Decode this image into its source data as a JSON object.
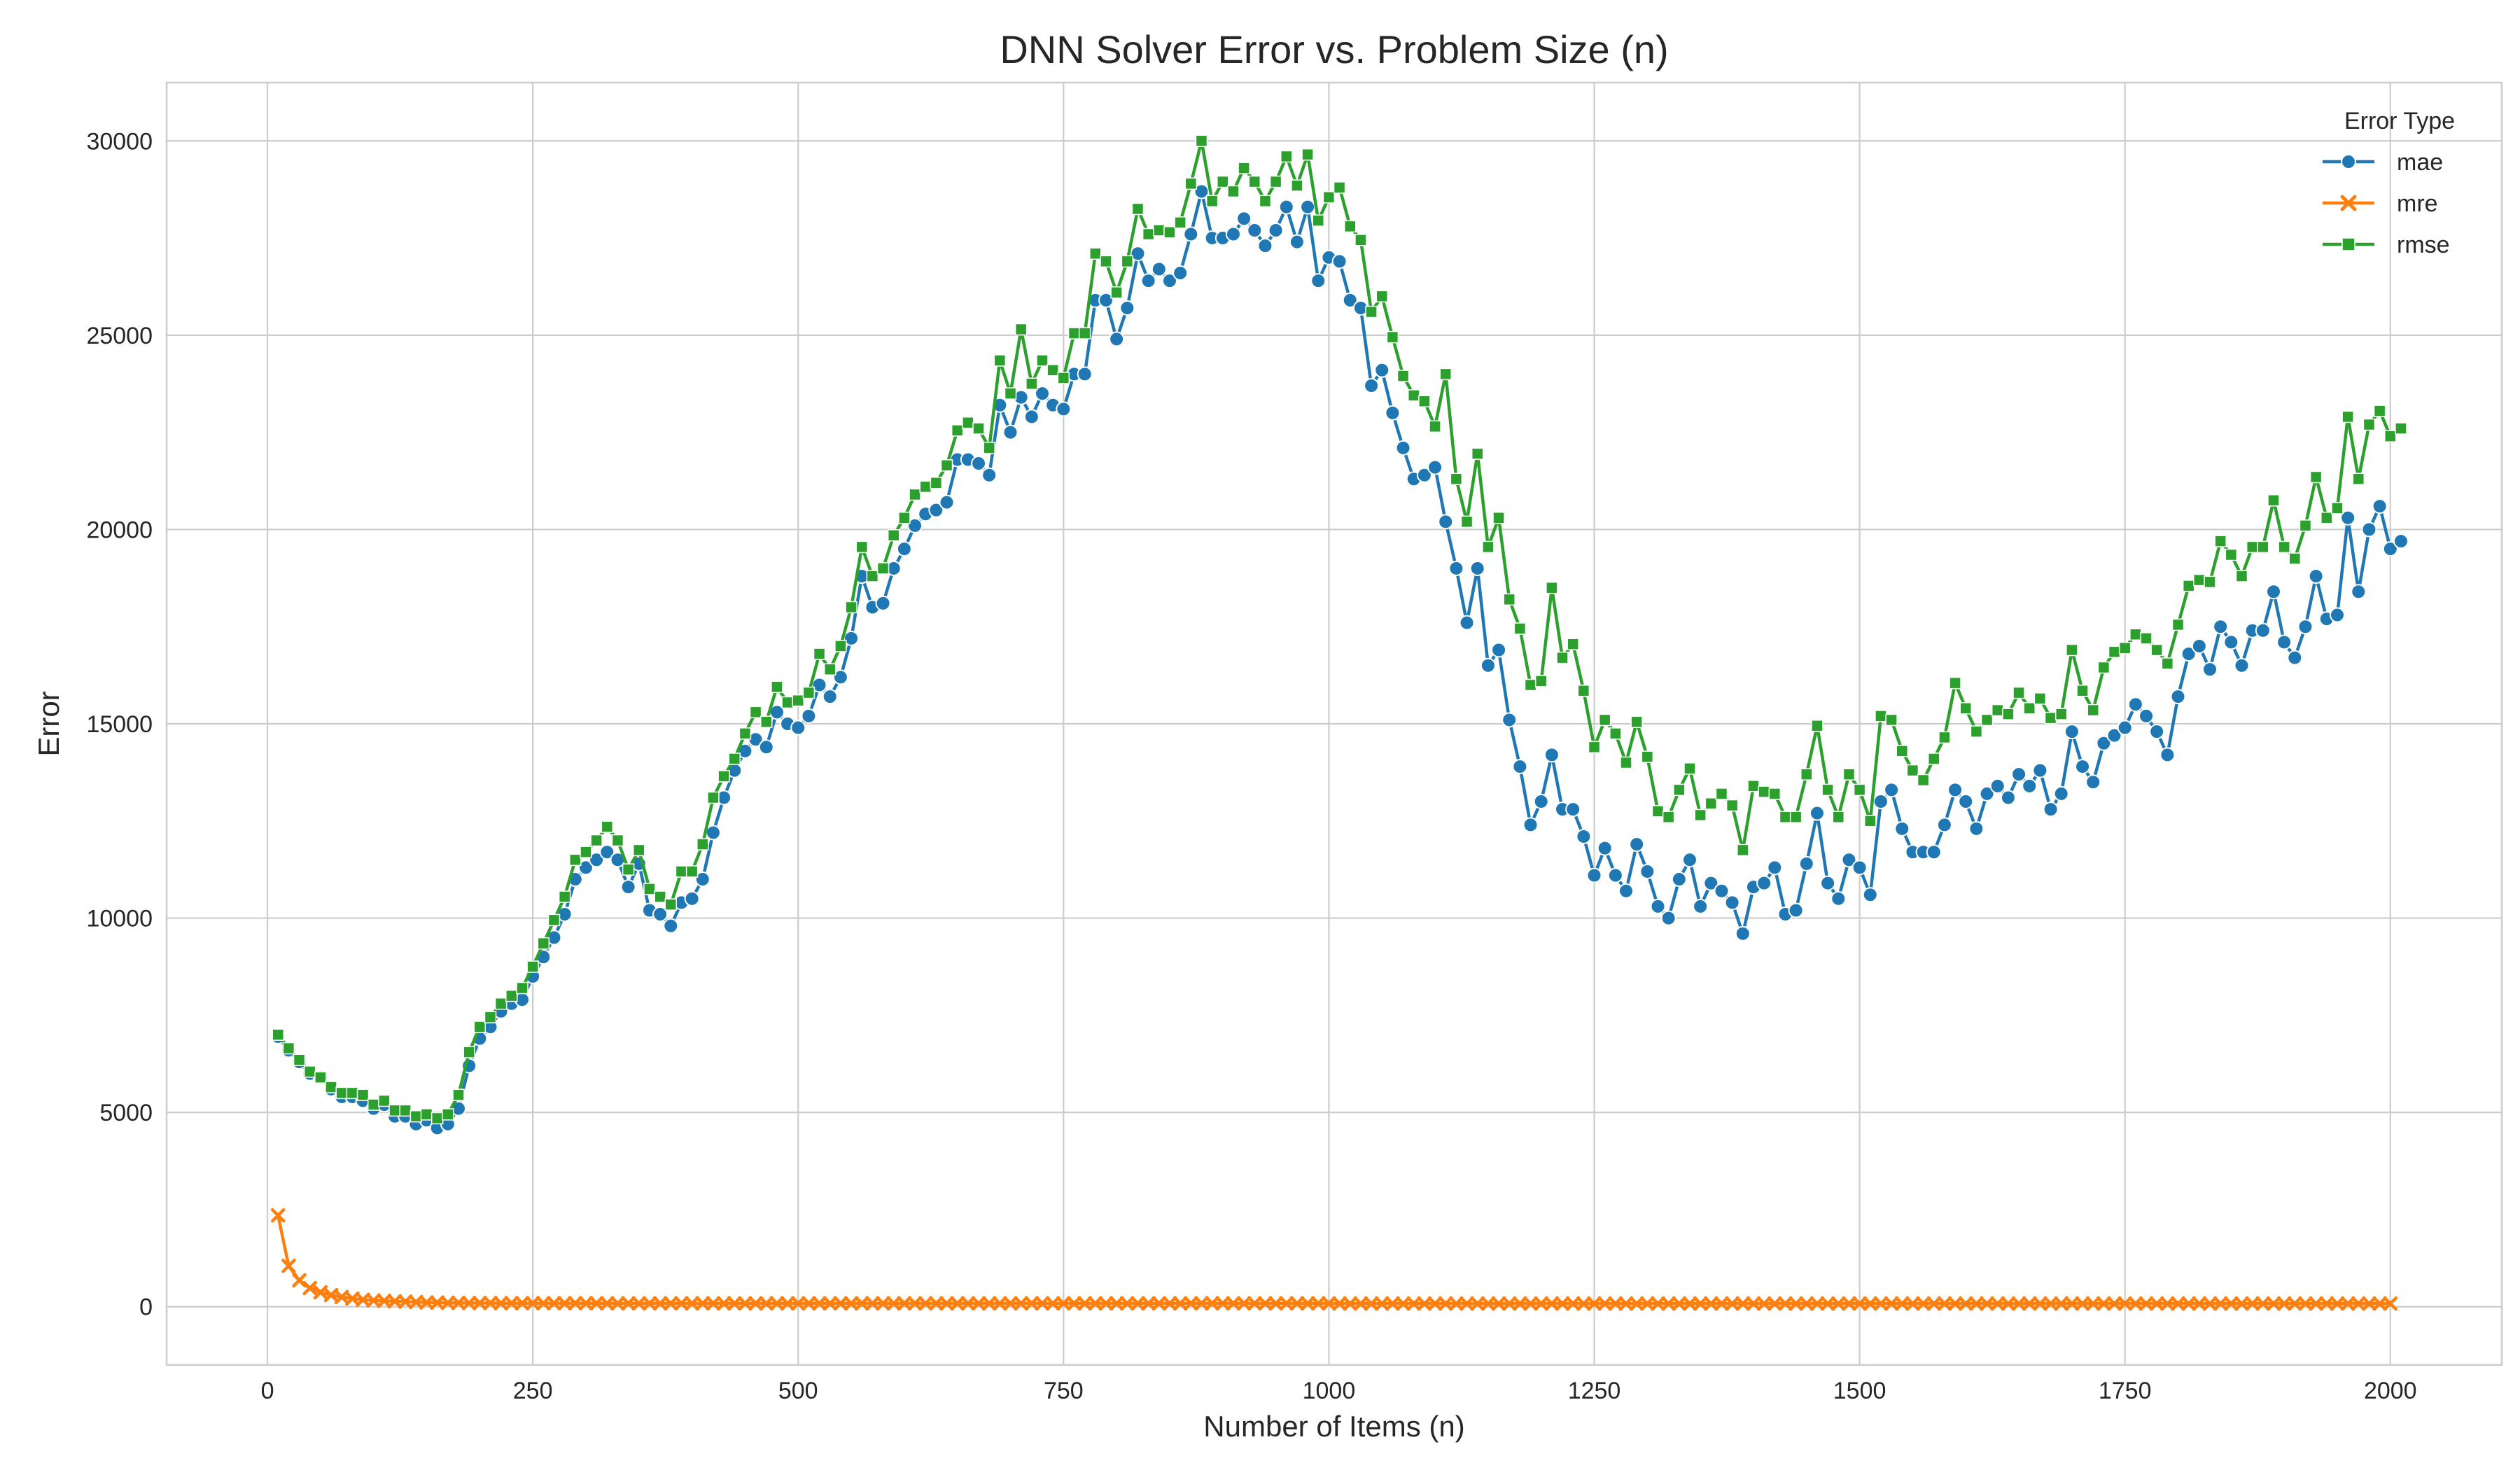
{
  "chart_data": {
    "type": "line",
    "title": "DNN Solver Error vs. Problem Size (n)",
    "xlabel": "Number of Items (n)",
    "ylabel": "Error",
    "xlim": [
      -95,
      2105
    ],
    "ylim": [
      -1500,
      31500
    ],
    "xticks": [
      0,
      250,
      500,
      750,
      1000,
      1250,
      1500,
      1750,
      2000
    ],
    "yticks": [
      0,
      5000,
      10000,
      15000,
      20000,
      25000,
      30000
    ],
    "xtick_labels": [
      "0",
      "250",
      "500",
      "750",
      "1000",
      "1250",
      "1500",
      "1750",
      "2000"
    ],
    "ytick_labels": [
      "0",
      "5000",
      "10000",
      "15000",
      "20000",
      "25000",
      "30000"
    ],
    "grid": true,
    "legend": {
      "title": "Error Type",
      "position": "top-right"
    },
    "x_start": 10,
    "x_step": 10,
    "series": [
      {
        "name": "mae",
        "color": "#1f77b4",
        "marker": "circle",
        "values": [
          6950,
          6600,
          6300,
          6000,
          5900,
          5600,
          5400,
          5400,
          5300,
          5100,
          5200,
          4900,
          4900,
          4700,
          4800,
          4600,
          4700,
          5100,
          6200,
          6900,
          7200,
          7600,
          7800,
          7900,
          8500,
          9000,
          9500,
          10100,
          11000,
          11300,
          11500,
          11700,
          11500,
          10800,
          11400,
          10200,
          10100,
          9800,
          10400,
          10500,
          11000,
          12200,
          13100,
          13800,
          14300,
          14600,
          14400,
          15300,
          15000,
          14900,
          15200,
          16000,
          15700,
          16200,
          17200,
          18800,
          18000,
          18100,
          19000,
          19500,
          20100,
          20400,
          20500,
          20700,
          21800,
          21800,
          21700,
          21400,
          23200,
          22500,
          23400,
          22900,
          23500,
          23200,
          23100,
          24000,
          24000,
          25900,
          25900,
          24900,
          25700,
          27100,
          26400,
          26700,
          26400,
          26600,
          27600,
          28700,
          27500,
          27500,
          27600,
          28000,
          27700,
          27300,
          27700,
          28300,
          27400,
          28300,
          26400,
          27000,
          26900,
          25900,
          25700,
          23700,
          24100,
          23000,
          22100,
          21300,
          21400,
          21600,
          20200,
          19000,
          17600,
          19000,
          16500,
          16900,
          15100,
          13900,
          12400,
          13000,
          14200,
          12800,
          12800,
          12100,
          11100,
          11800,
          11100,
          10700,
          11900,
          11200,
          10300,
          10000,
          11000,
          11500,
          10300,
          10900,
          10700,
          10400,
          9600,
          10800,
          10900,
          11300,
          10100,
          10200,
          11400,
          12700,
          10900,
          10500,
          11500,
          11300,
          10600,
          13000,
          13300,
          12300,
          11700,
          11700,
          11700,
          12400,
          13300,
          13000,
          12300,
          13200,
          13400,
          13100,
          13700,
          13400,
          13800,
          12800,
          13200,
          14800,
          13900,
          13500,
          14500,
          14700,
          14900,
          15500,
          15200,
          14800,
          14200,
          15700,
          16800,
          17000,
          16400,
          17500,
          17100,
          16500,
          17400,
          17400,
          18400,
          17100,
          16700,
          17500,
          18800,
          17700,
          17800,
          20300,
          18400,
          20000,
          20600,
          19500,
          19700
        ]
      },
      {
        "name": "mre",
        "color": "#ff7f0e",
        "marker": "x",
        "values": [
          2350,
          1050,
          680,
          480,
          370,
          300,
          250,
          210,
          180,
          160,
          150,
          140,
          130,
          120,
          110,
          105,
          100,
          100,
          95,
          95,
          95,
          90,
          90,
          90,
          90,
          90,
          90,
          90,
          90,
          90,
          90,
          85,
          85,
          85,
          85,
          85,
          85,
          85,
          85,
          85,
          85,
          85,
          85,
          85,
          85,
          85,
          85,
          85,
          85,
          85,
          85,
          85,
          85,
          85,
          85,
          85,
          85,
          85,
          85,
          85,
          85,
          85,
          85,
          85,
          85,
          85,
          85,
          85,
          85,
          85,
          85,
          85,
          85,
          85,
          85,
          85,
          85,
          85,
          85,
          85,
          85,
          85,
          85,
          85,
          85,
          85,
          85,
          85,
          85,
          85,
          85,
          85,
          85,
          85,
          85,
          85,
          85,
          85,
          85,
          85,
          80,
          80,
          80,
          80,
          80,
          80,
          80,
          80,
          80,
          80,
          80,
          80,
          80,
          80,
          80,
          80,
          80,
          80,
          80,
          80,
          80,
          80,
          80,
          80,
          80,
          80,
          80,
          80,
          80,
          80,
          80,
          80,
          80,
          80,
          80,
          80,
          80,
          80,
          80,
          80,
          80,
          80,
          80,
          80,
          80,
          80,
          80,
          80,
          80,
          80,
          80,
          80,
          80,
          80,
          80,
          80,
          80,
          80,
          80,
          80,
          80,
          80,
          80,
          80,
          80,
          80,
          80,
          80,
          80,
          80,
          80,
          80,
          80,
          80,
          80,
          80,
          80,
          80,
          80,
          80,
          80,
          80,
          80,
          80,
          80,
          80,
          80,
          80,
          80,
          80,
          80,
          80,
          80,
          80,
          80,
          80,
          80,
          80,
          80,
          80
        ]
      },
      {
        "name": "rmse",
        "color": "#2ca02c",
        "marker": "square",
        "values": [
          7000,
          6650,
          6350,
          6050,
          5900,
          5650,
          5500,
          5500,
          5450,
          5200,
          5300,
          5050,
          5050,
          4900,
          4950,
          4850,
          4950,
          5450,
          6550,
          7200,
          7450,
          7800,
          8000,
          8200,
          8750,
          9350,
          9950,
          10550,
          11500,
          11700,
          12000,
          12350,
          12000,
          11250,
          11750,
          10750,
          10550,
          10350,
          11200,
          11200,
          11900,
          13100,
          13650,
          14100,
          14750,
          15300,
          15050,
          15950,
          15550,
          15600,
          15800,
          16800,
          16400,
          17000,
          18000,
          19550,
          18800,
          19000,
          19850,
          20300,
          20900,
          21100,
          21200,
          21650,
          22550,
          22750,
          22600,
          22100,
          24350,
          23500,
          25150,
          23750,
          24350,
          24100,
          23900,
          25050,
          25050,
          27100,
          26900,
          26100,
          26900,
          28250,
          27600,
          27700,
          27650,
          27900,
          28900,
          30000,
          28450,
          28950,
          28700,
          29300,
          28950,
          28450,
          28950,
          29600,
          28850,
          29650,
          27950,
          28550,
          28800,
          27800,
          27450,
          25600,
          26000,
          24950,
          23950,
          23450,
          23300,
          22650,
          24000,
          21300,
          20200,
          21950,
          19550,
          20300,
          18200,
          17450,
          16000,
          16100,
          18500,
          16700,
          17050,
          15850,
          14400,
          15100,
          14750,
          14000,
          15050,
          14150,
          12750,
          12600,
          13300,
          13850,
          12650,
          12950,
          13200,
          12900,
          11750,
          13400,
          13250,
          13200,
          12600,
          12600,
          13700,
          14950,
          13300,
          12600,
          13700,
          13300,
          12500,
          15200,
          15100,
          14300,
          13800,
          13550,
          14100,
          14650,
          16050,
          15400,
          14800,
          15100,
          15350,
          15250,
          15800,
          15400,
          15650,
          15150,
          15250,
          16900,
          15850,
          15350,
          16450,
          16850,
          16950,
          17300,
          17200,
          16900,
          16550,
          17550,
          18550,
          18700,
          18650,
          19700,
          19350,
          18800,
          19550,
          19550,
          20750,
          19550,
          19250,
          20100,
          21350,
          20300,
          20550,
          22900,
          21300,
          22700,
          23050,
          22400,
          22600
        ]
      }
    ]
  }
}
